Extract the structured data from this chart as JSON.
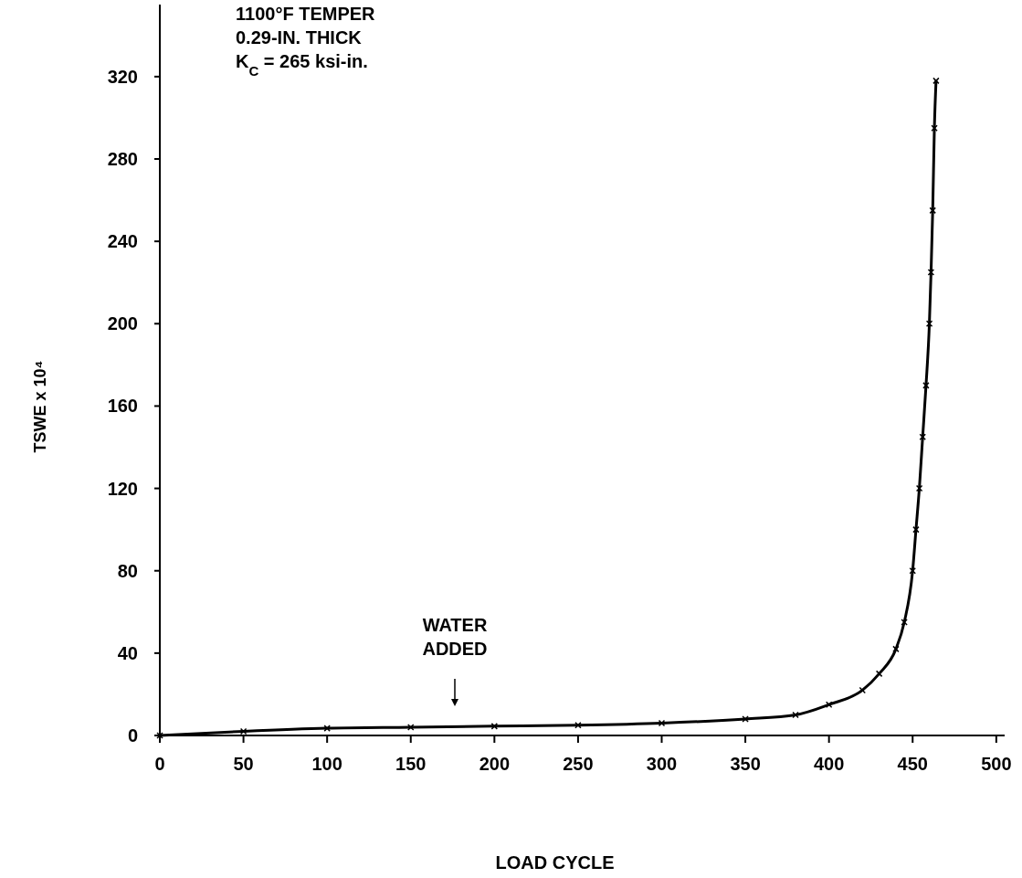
{
  "chart_data": {
    "type": "line",
    "xlabel": "LOAD CYCLE",
    "ylabel": "TSWE x 10⁴",
    "xlim": [
      0,
      505
    ],
    "ylim": [
      0,
      355
    ],
    "xticks": [
      0,
      50,
      100,
      150,
      200,
      250,
      300,
      350,
      400,
      450,
      500
    ],
    "yticks": [
      0,
      40,
      80,
      120,
      160,
      200,
      240,
      280,
      320
    ],
    "grid": false,
    "marker": "cross",
    "line_style": "solid",
    "series": [
      {
        "color": "#000000",
        "x": [
          0,
          50,
          100,
          150,
          200,
          250,
          300,
          350,
          380,
          400,
          420,
          430,
          440,
          445,
          450,
          452,
          454,
          456,
          458,
          460,
          461,
          462,
          463,
          464
        ],
        "values": [
          0,
          2,
          3.5,
          4,
          4.5,
          5,
          6,
          8,
          10,
          15,
          22,
          30,
          42,
          55,
          80,
          100,
          120,
          145,
          170,
          200,
          225,
          255,
          295,
          318
        ]
      }
    ],
    "annotations": [
      "1100°F TEMPER",
      "0.29-IN. THICK",
      "K$_{C}$ = 265 ksi-in.",
      "WATER ADDED"
    ]
  }
}
